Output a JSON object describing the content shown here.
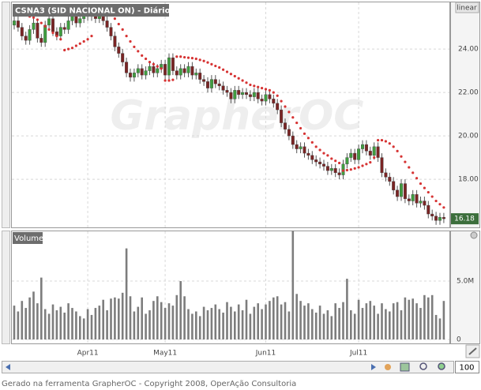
{
  "chart_data": [
    {
      "type": "candlestick",
      "title": "CSNA3 (SID NACIONAL ON) - Diário",
      "scale_label": "linear",
      "watermark": "GrapherOC",
      "last_value": 16.18,
      "up_color": "#3f9e3f",
      "down_color": "#7a2424",
      "sar_color": "#d63333",
      "categories": [
        null,
        null,
        null,
        null,
        null,
        null,
        null,
        null,
        null,
        null,
        null,
        null,
        null,
        null,
        null,
        null,
        null,
        null,
        null,
        "Apr11",
        null,
        null,
        null,
        null,
        null,
        null,
        null,
        null,
        null,
        null,
        null,
        null,
        null,
        null,
        null,
        null,
        null,
        null,
        null,
        "May11",
        null,
        null,
        null,
        null,
        null,
        null,
        null,
        null,
        null,
        null,
        null,
        null,
        null,
        null,
        null,
        null,
        null,
        null,
        null,
        null,
        null,
        null,
        null,
        null,
        null,
        "Jun11",
        null,
        null,
        null,
        null,
        null,
        null,
        null,
        null,
        null,
        null,
        null,
        null,
        null,
        null,
        null,
        null,
        null,
        null,
        null,
        null,
        null,
        null,
        null,
        "Jul11",
        null,
        null,
        null,
        null,
        null,
        null,
        null,
        null,
        null,
        null,
        null,
        null,
        null,
        null,
        null,
        null,
        null,
        null,
        null,
        null,
        null,
        null
      ],
      "open": [
        25.1,
        25.3,
        25.0,
        24.6,
        24.4,
        24.9,
        25.2,
        24.5,
        24.3,
        25.1,
        25.4,
        24.8,
        24.6,
        25.0,
        24.9,
        25.3,
        25.5,
        25.2,
        25.4,
        25.6,
        25.5,
        25.7,
        25.4,
        25.6,
        25.3,
        25.0,
        24.6,
        24.1,
        23.8,
        23.4,
        22.9,
        22.7,
        22.9,
        23.1,
        22.8,
        23.0,
        23.2,
        22.9,
        23.1,
        23.3,
        22.8,
        23.6,
        23.0,
        22.8,
        23.1,
        22.9,
        23.2,
        22.8,
        22.9,
        22.6,
        22.5,
        22.2,
        22.6,
        22.4,
        22.3,
        22.1,
        22.0,
        21.7,
        22.1,
        21.9,
        22.0,
        21.9,
        21.8,
        22.0,
        21.7,
        21.6,
        21.9,
        21.7,
        21.5,
        21.2,
        20.6,
        20.3,
        20.0,
        19.6,
        19.4,
        19.5,
        19.2,
        19.1,
        18.9,
        18.8,
        18.7,
        18.6,
        18.4,
        18.5,
        18.3,
        18.2,
        18.7,
        19.0,
        19.2,
        18.9,
        19.4,
        19.6,
        19.3,
        19.1,
        19.5,
        19.0,
        18.3,
        18.1,
        17.9,
        17.5,
        17.2,
        17.8,
        17.1,
        17.0,
        17.3,
        16.9,
        17.0,
        16.8,
        16.4,
        16.3,
        16.1,
        16.25
      ],
      "high": [
        25.5,
        25.5,
        25.2,
        24.8,
        25.1,
        25.4,
        25.4,
        24.7,
        25.3,
        25.6,
        25.6,
        25.0,
        25.2,
        25.2,
        25.5,
        25.7,
        25.7,
        25.6,
        25.8,
        25.8,
        25.9,
        25.9,
        25.8,
        25.8,
        25.5,
        25.2,
        24.8,
        24.3,
        24.0,
        23.6,
        23.1,
        23.1,
        23.3,
        23.3,
        23.2,
        23.4,
        23.4,
        23.3,
        23.5,
        23.5,
        23.8,
        23.8,
        23.2,
        23.3,
        23.3,
        23.4,
        23.4,
        23.1,
        23.1,
        22.8,
        22.7,
        22.8,
        22.8,
        22.6,
        22.5,
        22.3,
        22.2,
        22.3,
        22.3,
        22.2,
        22.2,
        22.1,
        22.2,
        22.2,
        21.9,
        22.1,
        22.1,
        21.9,
        21.7,
        21.4,
        20.8,
        20.5,
        20.2,
        19.8,
        19.7,
        19.7,
        19.4,
        19.3,
        19.1,
        19.0,
        18.9,
        18.8,
        18.7,
        18.7,
        18.5,
        18.9,
        19.2,
        19.4,
        19.4,
        19.6,
        19.8,
        19.8,
        19.5,
        19.7,
        19.7,
        19.2,
        18.5,
        18.3,
        18.1,
        17.7,
        18.0,
        18.0,
        17.3,
        17.5,
        17.5,
        17.2,
        17.2,
        17.0,
        16.6,
        16.5,
        16.45,
        16.45
      ],
      "low": [
        24.9,
        24.8,
        24.4,
        24.2,
        24.2,
        24.7,
        24.3,
        24.1,
        24.1,
        24.9,
        24.6,
        24.4,
        24.4,
        24.7,
        24.7,
        25.1,
        25.0,
        25.0,
        25.2,
        25.3,
        25.3,
        25.2,
        25.2,
        25.1,
        24.8,
        24.4,
        23.9,
        23.6,
        23.2,
        22.7,
        22.5,
        22.5,
        22.7,
        22.6,
        22.6,
        22.8,
        22.7,
        22.7,
        22.9,
        22.6,
        22.6,
        22.8,
        22.6,
        22.6,
        22.7,
        22.7,
        22.6,
        22.6,
        22.4,
        22.3,
        22.0,
        22.0,
        22.2,
        22.1,
        21.9,
        21.8,
        21.5,
        21.5,
        21.7,
        21.7,
        21.7,
        21.6,
        21.6,
        21.5,
        21.4,
        21.4,
        21.5,
        21.3,
        21.0,
        20.4,
        20.1,
        19.8,
        19.4,
        19.2,
        19.2,
        19.0,
        18.9,
        18.7,
        18.6,
        18.5,
        18.4,
        18.2,
        18.2,
        18.1,
        18.0,
        18.0,
        18.5,
        18.8,
        18.7,
        18.7,
        19.2,
        19.1,
        18.9,
        18.9,
        18.8,
        18.1,
        17.9,
        17.7,
        17.3,
        17.0,
        17.0,
        16.9,
        16.8,
        16.8,
        16.7,
        16.7,
        16.6,
        16.2,
        16.1,
        15.9,
        15.9,
        15.98
      ],
      "close": [
        25.3,
        25.0,
        24.6,
        24.4,
        24.9,
        25.2,
        24.5,
        24.3,
        25.1,
        25.4,
        24.8,
        24.6,
        25.0,
        24.9,
        25.3,
        25.5,
        25.2,
        25.4,
        25.6,
        25.5,
        25.7,
        25.4,
        25.6,
        25.3,
        25.0,
        24.6,
        24.1,
        23.8,
        23.4,
        22.9,
        22.7,
        22.9,
        23.1,
        22.8,
        23.0,
        23.2,
        22.9,
        23.1,
        23.3,
        22.8,
        23.6,
        23.0,
        22.8,
        23.1,
        22.9,
        23.2,
        22.8,
        22.9,
        22.6,
        22.5,
        22.2,
        22.6,
        22.4,
        22.3,
        22.1,
        22.0,
        21.7,
        22.1,
        21.9,
        22.0,
        21.9,
        21.8,
        22.0,
        21.7,
        21.6,
        21.9,
        21.7,
        21.5,
        21.2,
        20.6,
        20.3,
        20.0,
        19.6,
        19.4,
        19.5,
        19.2,
        19.1,
        18.9,
        18.8,
        18.7,
        18.6,
        18.4,
        18.5,
        18.3,
        18.2,
        18.7,
        19.0,
        19.2,
        18.9,
        19.4,
        19.6,
        19.3,
        19.1,
        19.5,
        19.0,
        18.3,
        18.1,
        17.9,
        17.5,
        17.2,
        17.8,
        17.1,
        17.0,
        17.3,
        16.9,
        17.0,
        16.8,
        16.4,
        16.3,
        16.1,
        16.25,
        16.18
      ],
      "sar": [
        26.0,
        25.95,
        25.9,
        25.8,
        25.5,
        25.45,
        25.35,
        25.2,
        25.05,
        24.9,
        24.75,
        24.6,
        24.45,
        23.95,
        24.0,
        24.05,
        24.15,
        24.25,
        24.35,
        24.45,
        24.6,
        25.95,
        25.9,
        25.85,
        25.75,
        25.6,
        25.4,
        25.15,
        24.9,
        24.6,
        24.35,
        24.1,
        23.9,
        23.7,
        23.55,
        23.4,
        23.3,
        23.2,
        23.1,
        22.55,
        22.55,
        22.58,
        23.65,
        23.65,
        23.62,
        23.6,
        23.58,
        23.55,
        23.5,
        23.45,
        23.38,
        23.3,
        23.22,
        23.15,
        23.05,
        22.95,
        22.85,
        22.75,
        22.65,
        22.55,
        22.45,
        22.35,
        22.3,
        22.25,
        22.2,
        22.15,
        22.1,
        22.0,
        21.85,
        21.6,
        21.35,
        21.1,
        20.85,
        20.6,
        20.35,
        20.1,
        19.9,
        19.7,
        19.5,
        19.35,
        19.2,
        19.1,
        18.95,
        18.85,
        18.75,
        18.4,
        18.42,
        18.45,
        18.5,
        18.55,
        18.62,
        18.7,
        18.78,
        19.0,
        19.8,
        19.8,
        19.75,
        19.65,
        19.5,
        19.3,
        19.05,
        18.8,
        18.55,
        18.3,
        18.05,
        17.8,
        17.6,
        17.4,
        17.2,
        17.0,
        16.85,
        16.7
      ],
      "ylim": [
        15.82,
        26.15
      ],
      "yticks": [
        {
          "value": 18,
          "label": "18.00"
        },
        {
          "value": 20,
          "label": "20.00"
        },
        {
          "value": 22,
          "label": "22.00"
        },
        {
          "value": 24,
          "label": "24.00"
        }
      ]
    },
    {
      "type": "bar",
      "title": "Volume",
      "color": "#7d7d7d",
      "values": [
        2900000.0,
        2400000.0,
        3300000.0,
        2700000.0,
        3600000.0,
        4100000.0,
        3100000.0,
        5300000.0,
        2600000.0,
        2200000.0,
        3000000.0,
        2500000.0,
        2800000.0,
        2300000.0,
        3100000.0,
        2700000.0,
        2400000.0,
        2000000.0,
        1800000.0,
        2600000.0,
        2100000.0,
        2700000.0,
        2900000.0,
        3400000.0,
        2500000.0,
        3500000.0,
        3600000.0,
        3500000.0,
        4000000.0,
        7800000.0,
        3700000.0,
        2400000.0,
        2800000.0,
        3600000.0,
        2200000.0,
        2500000.0,
        3300000.0,
        3700000.0,
        3200000.0,
        2700000.0,
        3100000.0,
        2900000.0,
        3800000.0,
        5000000.0,
        3700000.0,
        2600000.0,
        2200000.0,
        2400000.0,
        2000000.0,
        2800000.0,
        2500000.0,
        2700000.0,
        3000000.0,
        2600000.0,
        2300000.0,
        3200000.0,
        2800000.0,
        2400000.0,
        3000000.0,
        2500000.0,
        3400000.0,
        2200000.0,
        2800000.0,
        3100000.0,
        2600000.0,
        3000000.0,
        3300000.0,
        3600000.0,
        3700000.0,
        3000000.0,
        3200000.0,
        2400000.0,
        9300000.0,
        3900000.0,
        3300000.0,
        2900000.0,
        3100000.0,
        2600000.0,
        2300000.0,
        2900000.0,
        2200000.0,
        2500000.0,
        2000000.0,
        3100000.0,
        2700000.0,
        3200000.0,
        5200000.0,
        2500000.0,
        2200000.0,
        3400000.0,
        2700000.0,
        3100000.0,
        3300000.0,
        2900000.0,
        2200000.0,
        3100000.0,
        2600000.0,
        2400000.0,
        3100000.0,
        3200000.0,
        2500000.0,
        3600000.0,
        3400000.0,
        3500000.0,
        3100000.0,
        2700000.0,
        3800000.0,
        3600000.0,
        3800000.0,
        2100000.0,
        1800000.0,
        3300000.0
      ],
      "ylim": [
        0,
        9330000.0
      ],
      "yticks": [
        0,
        {
          "value": 5000000,
          "label": "5.0M"
        }
      ]
    }
  ],
  "zoom": "100",
  "footer": "Gerado na ferramenta GrapherOC - Copyright 2008, OperAção Consultoria"
}
